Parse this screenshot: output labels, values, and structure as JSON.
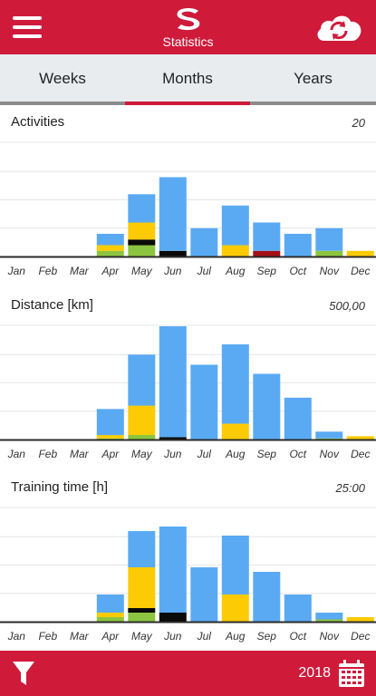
{
  "header": {
    "title": "Statistics"
  },
  "tabs": [
    {
      "label": "Weeks",
      "active": false
    },
    {
      "label": "Months",
      "active": true
    },
    {
      "label": "Years",
      "active": false
    }
  ],
  "colors": {
    "brand": "#cf1a3a",
    "blue": "#5aaaf3",
    "yellow": "#fdcb05",
    "green": "#8bc53f",
    "black": "#0a0a0a",
    "darkred": "#a50f16",
    "grid": "#e6e6e6",
    "axis": "#2b2b2b"
  },
  "chart_data": [
    {
      "type": "bar",
      "stacked": true,
      "title": "Activities",
      "max_label": "20",
      "ylim": [
        0,
        20
      ],
      "grid": true,
      "categories": [
        "Jan",
        "Feb",
        "Mar",
        "Apr",
        "May",
        "Jun",
        "Jul",
        "Aug",
        "Sep",
        "Oct",
        "Nov",
        "Dec"
      ],
      "series": [
        {
          "color": "green",
          "values": [
            0,
            0,
            0,
            1,
            2,
            0,
            0,
            0,
            0,
            0,
            1,
            0
          ]
        },
        {
          "color": "black",
          "values": [
            0,
            0,
            0,
            0,
            1,
            1,
            0,
            0,
            0,
            0,
            0,
            0
          ]
        },
        {
          "color": "darkred",
          "values": [
            0,
            0,
            0,
            0,
            0,
            0,
            0,
            0,
            1,
            0,
            0,
            0
          ]
        },
        {
          "color": "yellow",
          "values": [
            0,
            0,
            0,
            1,
            3,
            0,
            0,
            2,
            0,
            0,
            0,
            1
          ]
        },
        {
          "color": "blue",
          "values": [
            0,
            0,
            0,
            2,
            5,
            13,
            5,
            7,
            5,
            4,
            4,
            0
          ]
        }
      ]
    },
    {
      "type": "bar",
      "stacked": true,
      "title": "Distance [km]",
      "max_label": "500,00",
      "ylim": [
        0,
        500
      ],
      "grid": true,
      "categories": [
        "Jan",
        "Feb",
        "Mar",
        "Apr",
        "May",
        "Jun",
        "Jul",
        "Aug",
        "Sep",
        "Oct",
        "Nov",
        "Dec"
      ],
      "series": [
        {
          "color": "green",
          "values": [
            0,
            0,
            0,
            5,
            20,
            0,
            0,
            0,
            0,
            0,
            5,
            0
          ]
        },
        {
          "color": "black",
          "values": [
            0,
            0,
            0,
            0,
            0,
            10,
            0,
            0,
            0,
            0,
            0,
            0
          ]
        },
        {
          "color": "yellow",
          "values": [
            0,
            0,
            0,
            15,
            130,
            0,
            0,
            70,
            0,
            0,
            0,
            15
          ]
        },
        {
          "color": "blue",
          "values": [
            0,
            0,
            0,
            115,
            225,
            490,
            330,
            350,
            290,
            185,
            30,
            0
          ]
        }
      ]
    },
    {
      "type": "bar",
      "stacked": true,
      "title": "Training time [h]",
      "max_label": "25:00",
      "ylim": [
        0,
        25
      ],
      "grid": true,
      "categories": [
        "Jan",
        "Feb",
        "Mar",
        "Apr",
        "May",
        "Jun",
        "Jul",
        "Aug",
        "Sep",
        "Oct",
        "Nov",
        "Dec"
      ],
      "series": [
        {
          "color": "green",
          "values": [
            0,
            0,
            0,
            1,
            2,
            0,
            0,
            0,
            0,
            0,
            0.5,
            0
          ]
        },
        {
          "color": "black",
          "values": [
            0,
            0,
            0,
            0,
            1,
            2,
            0,
            0,
            0,
            0,
            0,
            0
          ]
        },
        {
          "color": "yellow",
          "values": [
            0,
            0,
            0,
            1,
            9,
            0,
            0,
            6,
            0,
            0,
            0,
            1
          ]
        },
        {
          "color": "blue",
          "values": [
            0,
            0,
            0,
            4,
            8,
            19,
            12,
            13,
            11,
            6,
            1.5,
            0
          ]
        }
      ]
    }
  ],
  "footer": {
    "year": "2018"
  }
}
